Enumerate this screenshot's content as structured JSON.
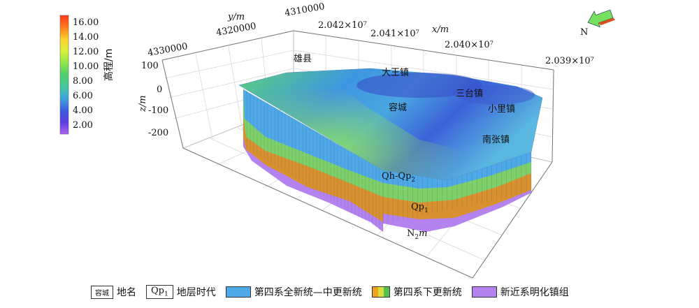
{
  "colorbar": {
    "title": "高程/m",
    "ticks": [
      "16.00",
      "14.00",
      "12.00",
      "10.00",
      "8.00",
      "6.00",
      "4.00",
      "2.00"
    ],
    "gradient": [
      "#ff3a1a",
      "#ff7a1e",
      "#ffd22e",
      "#d8f03a",
      "#8ee64a",
      "#4fd06a",
      "#45c9a0",
      "#3fa2e0",
      "#3b5ee0",
      "#5a3fe0",
      "#b060f0"
    ]
  },
  "axes": {
    "y_label": "y/m",
    "y_ticks": [
      "4330000",
      "4320000",
      "4310000"
    ],
    "x_label": "x/m",
    "x_ticks": [
      "2.042×10⁷",
      "2.041×10⁷",
      "2.040×10⁷",
      "2.039×10⁷"
    ],
    "z_label": "z/m",
    "z_ticks": [
      "100",
      "0",
      "-100",
      "-200"
    ]
  },
  "places": [
    "雄县",
    "大王镇",
    "容城",
    "三台镇",
    "小里镇",
    "南张镇"
  ],
  "strata_labels": {
    "qh_qp2": {
      "base": "Qh-Qp",
      "sub": "2"
    },
    "qp1": {
      "base": "Qp",
      "sub": "1"
    },
    "n2m": {
      "base": "N",
      "sub": "2",
      "tail": "m"
    }
  },
  "north": {
    "label": "N",
    "colors": [
      "#78e060",
      "#d85020"
    ]
  },
  "layer_colors": {
    "blue": "#4fa8e8",
    "green": "#7ed06a",
    "orange": "#d9902e",
    "purple": "#b483f0"
  },
  "legend": {
    "place_box": "容城",
    "place_text": "地名",
    "strat_box": {
      "base": "Qp",
      "sub": "1"
    },
    "strat_text": "地层时代",
    "q1_text": "第四系全新统—中更新统",
    "q2_text": "第四系下更新统",
    "n2_text": "新近系明化镇组",
    "q2_colors": [
      "#f0a020",
      "#d8e040",
      "#58c050"
    ]
  }
}
